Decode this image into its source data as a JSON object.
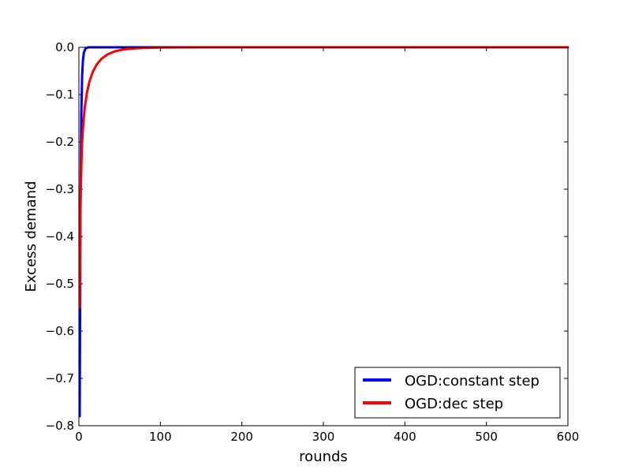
{
  "chart_data": {
    "type": "line",
    "xlabel": "rounds",
    "ylabel": "Excess demand",
    "xlim": [
      0,
      600
    ],
    "ylim": [
      -0.8,
      0.0
    ],
    "x_ticks": [
      0,
      100,
      200,
      300,
      400,
      500,
      600
    ],
    "x_tick_labels": [
      "0",
      "100",
      "200",
      "300",
      "400",
      "500",
      "600"
    ],
    "y_ticks": [
      0.0,
      -0.1,
      -0.2,
      -0.3,
      -0.4,
      -0.5,
      -0.6,
      -0.7,
      -0.8
    ],
    "y_tick_labels": [
      "0.0",
      "−0.1",
      "−0.2",
      "−0.3",
      "−0.4",
      "−0.5",
      "−0.6",
      "−0.7",
      "−0.8"
    ],
    "grid": false,
    "legend_position": "bottom-right",
    "series": [
      {
        "name": "OGD:constant step",
        "color": "#0000ff",
        "x": [
          1,
          2,
          3,
          4,
          5,
          6,
          8,
          10,
          12,
          15,
          20,
          30,
          50,
          100,
          200,
          300,
          400,
          500,
          600
        ],
        "y": [
          -0.78,
          -0.33,
          -0.14,
          -0.06,
          -0.027,
          -0.012,
          -0.003,
          -0.001,
          0.0,
          0.0,
          0.0,
          0.0,
          0.0,
          0.0,
          0.0,
          0.0,
          0.0,
          0.0,
          0.0
        ]
      },
      {
        "name": "OGD:dec step",
        "color": "#ff0000",
        "x": [
          1,
          2,
          3,
          4,
          5,
          7,
          10,
          13,
          17,
          22,
          28,
          35,
          45,
          55,
          70,
          85,
          100,
          150,
          200,
          300,
          400,
          500,
          600
        ],
        "y": [
          -0.55,
          -0.33,
          -0.25,
          -0.2,
          -0.17,
          -0.13,
          -0.095,
          -0.072,
          -0.052,
          -0.036,
          -0.024,
          -0.015,
          -0.008,
          -0.0045,
          -0.002,
          -0.001,
          -0.0005,
          0.0,
          0.0,
          0.0,
          0.0,
          0.0,
          0.0
        ]
      }
    ]
  }
}
